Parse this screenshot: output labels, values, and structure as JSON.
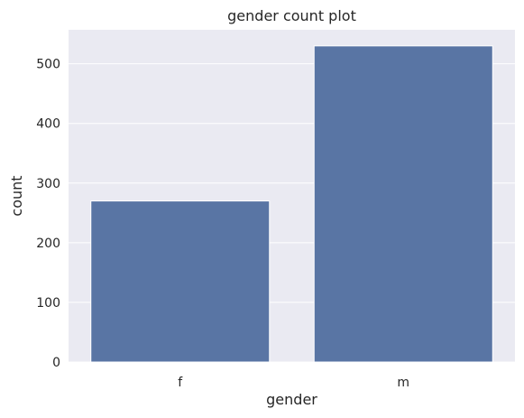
{
  "chart_data": {
    "type": "bar",
    "title": "gender count plot",
    "xlabel": "gender",
    "ylabel": "count",
    "categories": [
      "f",
      "m"
    ],
    "values": [
      270,
      530
    ],
    "ylim": [
      0,
      557
    ],
    "yticks": [
      0,
      100,
      200,
      300,
      400,
      500
    ],
    "grid": true,
    "colors": {
      "bar": "#5975a4",
      "plot_background": "#eaeaf2",
      "grid": "#ffffff",
      "text": "#262626"
    }
  }
}
